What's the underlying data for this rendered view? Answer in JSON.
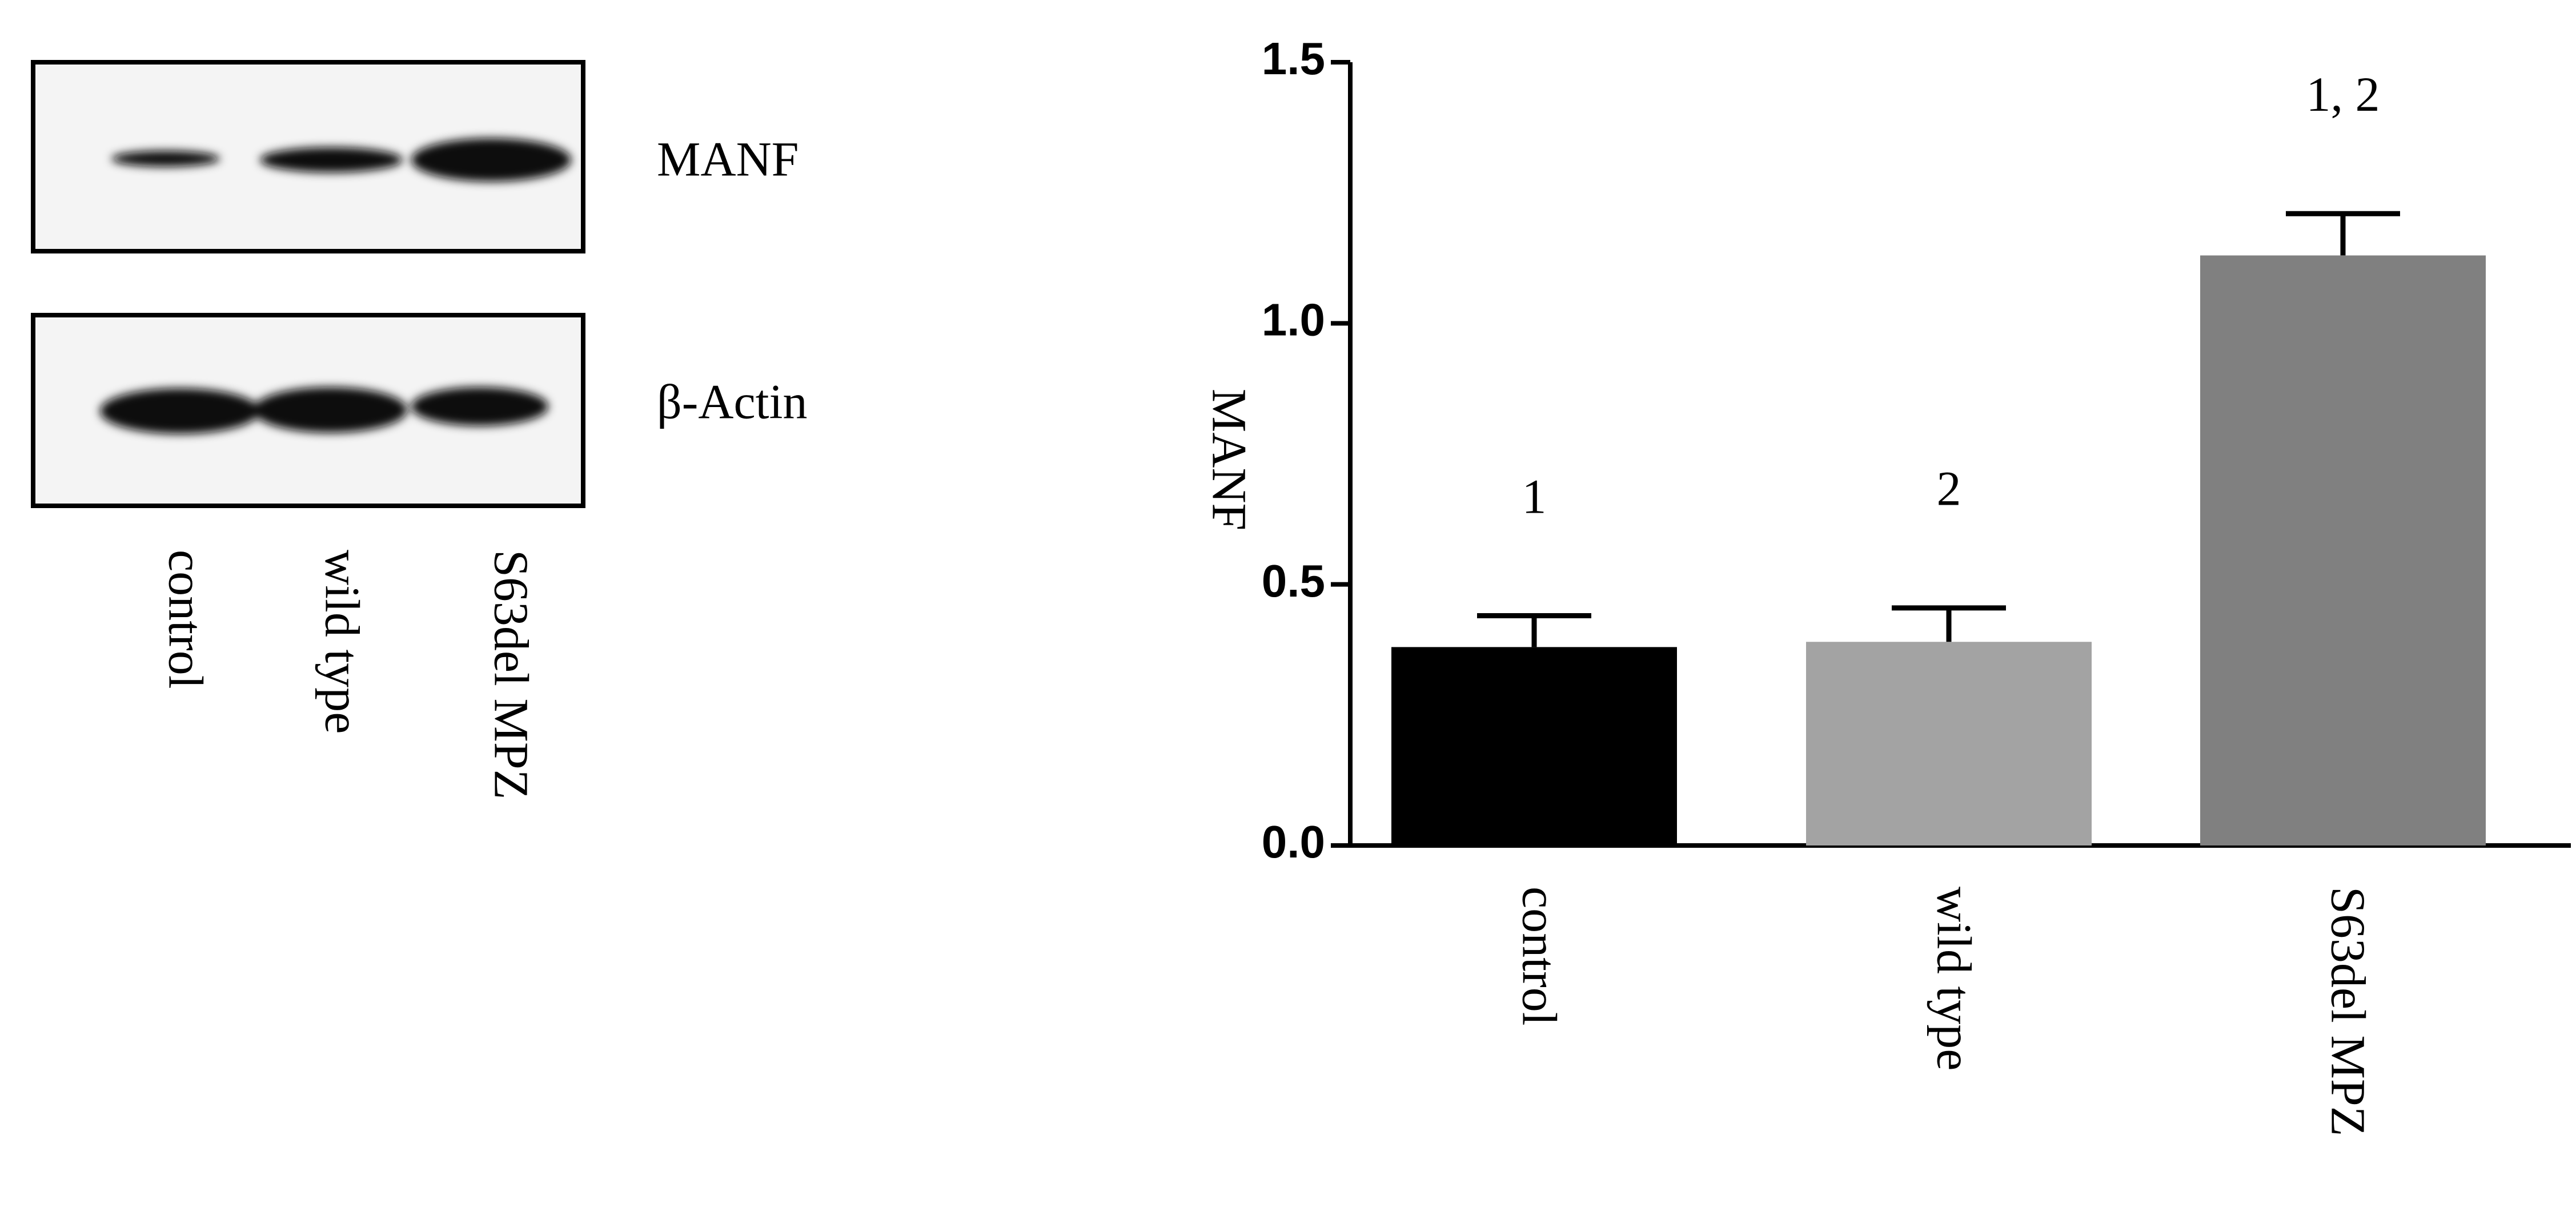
{
  "blot": {
    "rows": [
      "MANF",
      "β-Actin"
    ],
    "lanes": [
      "control",
      "wild type",
      "S63del MPZ"
    ]
  },
  "chart_data": {
    "type": "bar",
    "ylabel": "MANF",
    "categories": [
      "control",
      "wild type",
      "S63del MPZ"
    ],
    "values": [
      0.38,
      0.39,
      1.13
    ],
    "errors": [
      0.06,
      0.065,
      0.08
    ],
    "colors": [
      "#000000",
      "#a3a3a3",
      "#808080"
    ],
    "annotations": [
      "1",
      "2",
      "1, 2"
    ],
    "ylim": [
      0,
      1.5
    ],
    "yticks": [
      {
        "value": 0,
        "label": "0.0"
      },
      0.5,
      {
        "value": 1,
        "label": "1.0"
      },
      1.5
    ]
  }
}
